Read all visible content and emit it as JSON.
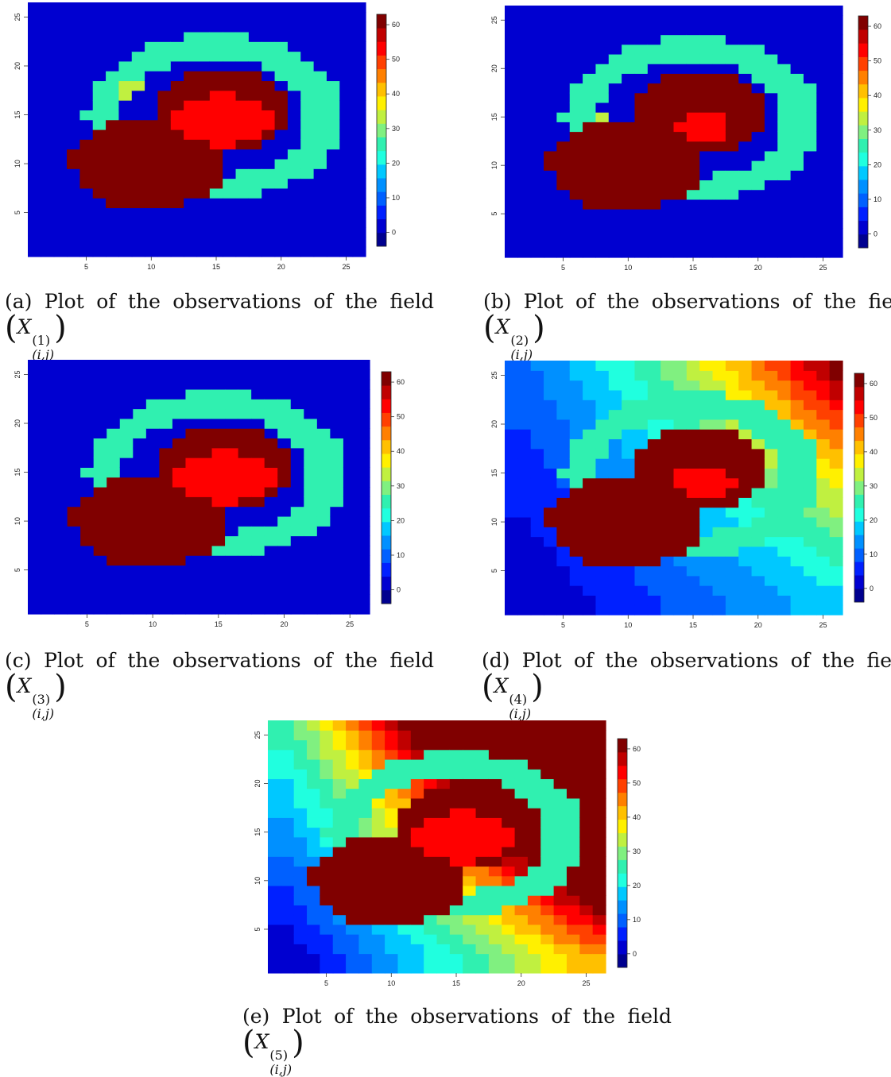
{
  "chart_data": [
    {
      "type": "heatmap",
      "panel": "a",
      "x_ticks": [
        5,
        10,
        15,
        20,
        25
      ],
      "y_ticks": [
        5,
        10,
        15,
        20,
        25
      ],
      "xlim": [
        0.5,
        26.5
      ],
      "ylim": [
        0.5,
        26.5
      ],
      "colorbar_ticks": [
        0,
        10,
        20,
        30,
        40,
        50,
        60
      ],
      "zlim": [
        -4,
        63
      ],
      "colormap": "jet",
      "field": {
        "background": 0,
        "ring": {
          "cx": 14.9,
          "cy": 14.8,
          "r_in": 6.0,
          "r_out": 8.4,
          "value": 26
        },
        "disk_large": {
          "cx": 9.9,
          "cy": 10.2,
          "r": 4.8,
          "value": 62
        },
        "disk_upper": {
          "cx": 15.6,
          "cy": 15.6,
          "r": 4.2,
          "value": 62
        },
        "disk_inner": {
          "cx": 15.4,
          "cy": 14.5,
          "r": 2.6,
          "sx": 1.5,
          "value": 55
        },
        "trend": null,
        "extra_cells": [
          {
            "i": 8,
            "j": 17,
            "value": 32
          },
          {
            "i": 8,
            "j": 18,
            "value": 32
          },
          {
            "i": 9,
            "j": 18,
            "value": 32
          }
        ]
      },
      "caption": {
        "prefix": "(a)",
        "words": [
          "Plot",
          "of",
          "the",
          "observations",
          "of",
          "the",
          "field"
        ],
        "var": "X",
        "sup": "(1)",
        "sub": "(i,j)"
      }
    },
    {
      "type": "heatmap",
      "panel": "b",
      "x_ticks": [
        5,
        10,
        15,
        20,
        25
      ],
      "y_ticks": [
        5,
        10,
        15,
        20,
        25
      ],
      "xlim": [
        0.5,
        26.5
      ],
      "ylim": [
        0.5,
        26.5
      ],
      "colorbar_ticks": [
        0,
        10,
        20,
        30,
        40,
        50,
        60
      ],
      "zlim": [
        -4,
        63
      ],
      "colormap": "jet",
      "field": {
        "background": 0,
        "ring": {
          "cx": 14.9,
          "cy": 14.8,
          "r_in": 6.0,
          "r_out": 8.4,
          "value": 26
        },
        "disk_large": {
          "cx": 9.9,
          "cy": 10.2,
          "r": 4.8,
          "value": 62
        },
        "disk_upper": {
          "cx": 15.6,
          "cy": 15.6,
          "r": 4.2,
          "value": 62
        },
        "disk_inner": {
          "cx": 15.6,
          "cy": 14.0,
          "r": 1.4,
          "sx": 1.6,
          "value": 55
        },
        "trend": null,
        "extra_cells": [
          {
            "i": 8,
            "j": 15,
            "value": 32
          }
        ]
      },
      "caption": {
        "prefix": "(b)",
        "words": [
          "Plot",
          "of",
          "the",
          "observations",
          "of",
          "the",
          "field"
        ],
        "var": "X",
        "sup": "(2)",
        "sub": "(i,j)"
      }
    },
    {
      "type": "heatmap",
      "panel": "c",
      "x_ticks": [
        5,
        10,
        15,
        20,
        25
      ],
      "y_ticks": [
        5,
        10,
        15,
        20,
        25
      ],
      "xlim": [
        0.5,
        26.5
      ],
      "ylim": [
        0.5,
        26.5
      ],
      "colorbar_ticks": [
        0,
        10,
        20,
        30,
        40,
        50,
        60
      ],
      "zlim": [
        -4,
        63
      ],
      "colormap": "jet",
      "field": {
        "background": 0,
        "ring": {
          "cx": 14.9,
          "cy": 14.8,
          "r_in": 6.0,
          "r_out": 8.4,
          "value": 26
        },
        "disk_large": {
          "cx": 9.9,
          "cy": 10.2,
          "r": 4.8,
          "value": 62
        },
        "disk_upper": {
          "cx": 15.6,
          "cy": 15.6,
          "r": 4.2,
          "value": 62
        },
        "disk_inner": {
          "cx": 15.4,
          "cy": 14.5,
          "r": 2.6,
          "sx": 1.5,
          "value": 55
        },
        "trend": null,
        "extra_cells": []
      },
      "caption": {
        "prefix": "(c)",
        "words": [
          "Plot",
          "of",
          "the",
          "observations",
          "of",
          "the",
          "field"
        ],
        "var": "X",
        "sup": "(3)",
        "sub": "(i,j)"
      }
    },
    {
      "type": "heatmap",
      "panel": "d",
      "x_ticks": [
        5,
        10,
        15,
        20,
        25
      ],
      "y_ticks": [
        5,
        10,
        15,
        20,
        25
      ],
      "xlim": [
        0.5,
        26.5
      ],
      "ylim": [
        0.5,
        26.5
      ],
      "colorbar_ticks": [
        0,
        10,
        20,
        30,
        40,
        50,
        60
      ],
      "zlim": [
        -4,
        63
      ],
      "colormap": "jet",
      "field": {
        "background": 0,
        "ring": {
          "cx": 14.9,
          "cy": 14.8,
          "r_in": 6.0,
          "r_out": 8.4,
          "value": 26
        },
        "disk_large": {
          "cx": 9.9,
          "cy": 10.2,
          "r": 4.8,
          "value": 62
        },
        "disk_upper": {
          "cx": 15.6,
          "cy": 15.6,
          "r": 4.2,
          "value": 62
        },
        "disk_inner": {
          "cx": 15.8,
          "cy": 14.3,
          "r": 1.6,
          "sx": 1.4,
          "value": 55
        },
        "trend": {
          "origin": [
            2,
            2
          ],
          "scale": 0.75,
          "power": 1.0
        },
        "extra_cells": []
      },
      "caption": {
        "prefix": "(d)",
        "words": [
          "Plot",
          "of",
          "the",
          "observations",
          "of",
          "the",
          "field"
        ],
        "var": "X",
        "sup": "(4)",
        "sub": "(i,j)"
      }
    },
    {
      "type": "heatmap",
      "panel": "e",
      "x_ticks": [
        5,
        10,
        15,
        20,
        25
      ],
      "y_ticks": [
        5,
        10,
        15,
        20,
        25
      ],
      "xlim": [
        0.5,
        26.5
      ],
      "ylim": [
        0.5,
        26.5
      ],
      "colorbar_ticks": [
        0,
        10,
        20,
        30,
        40,
        50,
        60
      ],
      "zlim": [
        -4,
        63
      ],
      "colormap": "jet",
      "field": {
        "background": 0,
        "ring": {
          "cx": 14.9,
          "cy": 14.8,
          "r_in": 6.0,
          "r_out": 8.4,
          "value": 26
        },
        "disk_large": {
          "cx": 9.9,
          "cy": 10.2,
          "r": 4.8,
          "value": 62
        },
        "disk_upper": {
          "cx": 15.6,
          "cy": 15.6,
          "r": 4.2,
          "value": 62
        },
        "disk_inner": {
          "cx": 15.4,
          "cy": 14.5,
          "r": 2.6,
          "sx": 1.5,
          "value": 55
        },
        "trend": {
          "origin": [
            2,
            2
          ],
          "scale": 1.8,
          "power": 1.0
        },
        "extra_cells": []
      },
      "caption": {
        "prefix": "(e)",
        "words": [
          "Plot",
          "of",
          "the",
          "observations",
          "of",
          "the",
          "field"
        ],
        "var": "X",
        "sup": "(5)",
        "sub": "(i,j)"
      }
    }
  ]
}
